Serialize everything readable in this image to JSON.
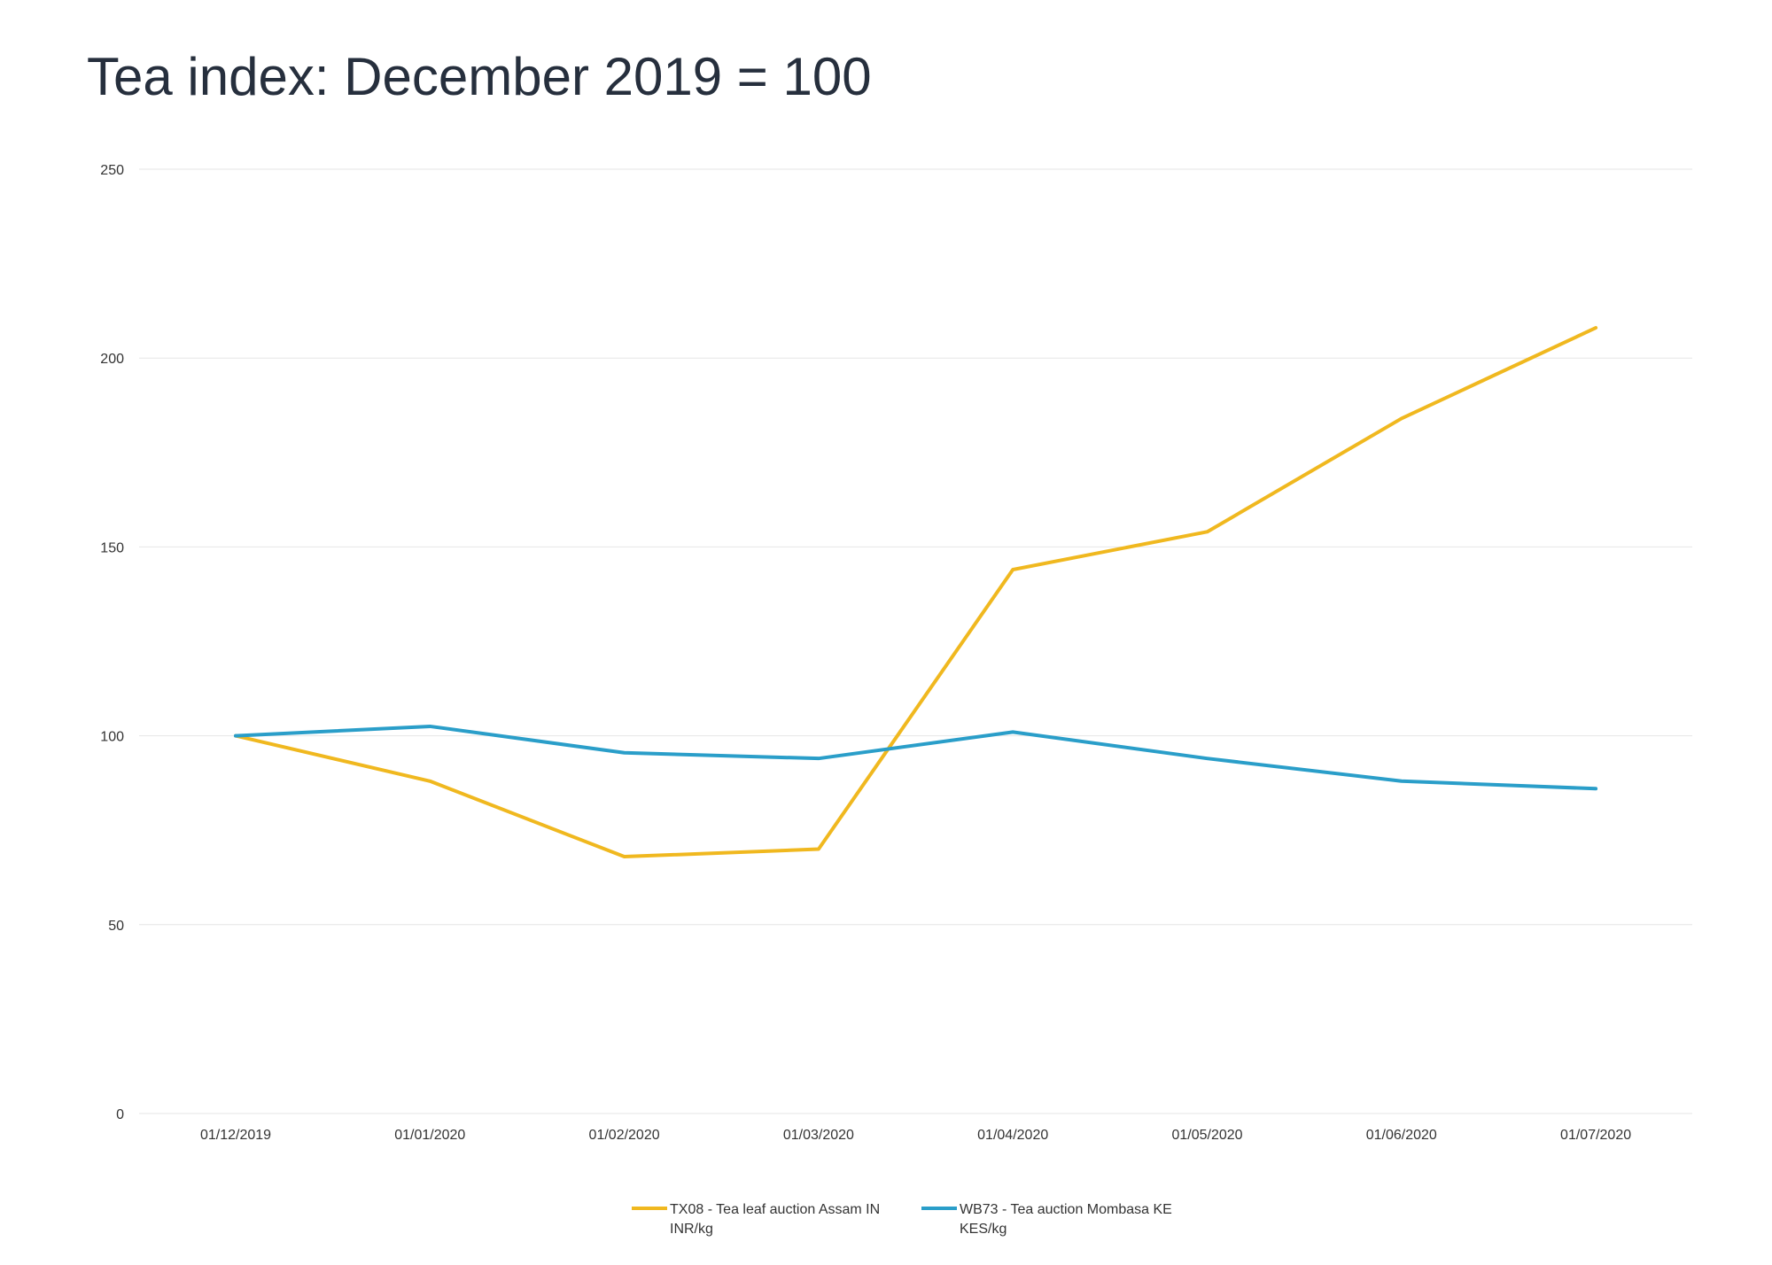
{
  "chart_data": {
    "type": "line",
    "title": "Tea index: December 2019 = 100",
    "xlabel": "",
    "ylabel": "",
    "ylim": [
      0,
      250
    ],
    "yticks": [
      0,
      50,
      100,
      150,
      200,
      250
    ],
    "categories": [
      "01/12/2019",
      "01/01/2020",
      "01/02/2020",
      "01/03/2020",
      "01/04/2020",
      "01/05/2020",
      "01/06/2020",
      "01/07/2020"
    ],
    "grid": true,
    "legend_position": "bottom",
    "series": [
      {
        "name_lines": [
          "TX08 - Tea leaf auction Assam IN",
          "INR/kg"
        ],
        "color": "#f0b81f",
        "values": [
          100,
          88,
          68,
          70,
          144,
          154,
          184,
          208
        ]
      },
      {
        "name_lines": [
          "WB73 - Tea auction Mombasa KE",
          "KES/kg"
        ],
        "color": "#2a9ec9",
        "values": [
          100,
          102.5,
          95.5,
          94,
          101,
          94,
          88,
          86
        ]
      }
    ]
  }
}
